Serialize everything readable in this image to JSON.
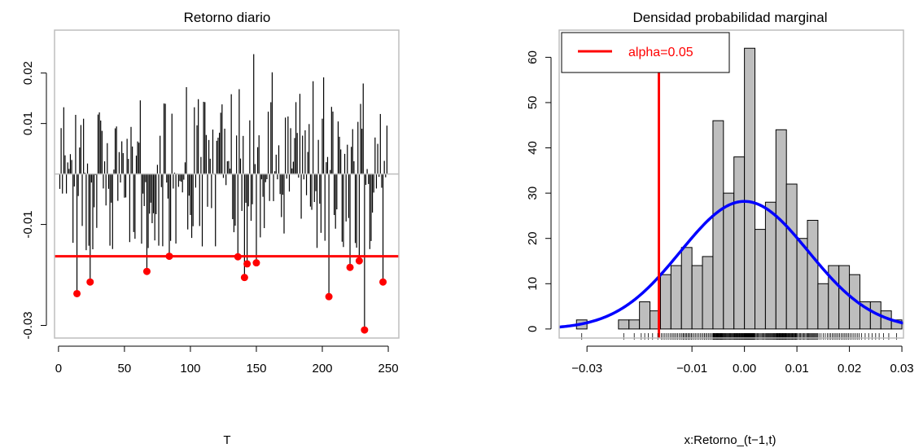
{
  "chart_data": [
    {
      "type": "bar",
      "title": "Retorno diario",
      "xlabel": "T",
      "ylabel": "",
      "xlim": [
        -3,
        258
      ],
      "ylim": [
        -0.0325,
        0.0285
      ],
      "x_ticks": [
        0,
        50,
        100,
        150,
        200,
        250
      ],
      "x_tick_labels": [
        "0",
        "50",
        "100",
        "150",
        "200",
        "250"
      ],
      "y_ticks": [
        -0.03,
        -0.01,
        0.01,
        0.02
      ],
      "y_tick_labels": [
        "-0.03",
        "-0.01",
        "0.01",
        "0.02"
      ],
      "zero_line": true,
      "threshold": -0.0163,
      "grid": false,
      "colors": {
        "bars": "#000000",
        "threshold": "#ff0000",
        "breach": "#ff0000",
        "zero_line": "#bebebe"
      },
      "breach_points": [
        {
          "x": 14,
          "y": -0.0237
        },
        {
          "x": 24,
          "y": -0.0214
        },
        {
          "x": 67,
          "y": -0.0193
        },
        {
          "x": 84,
          "y": -0.0163
        },
        {
          "x": 136,
          "y": -0.0164
        },
        {
          "x": 141,
          "y": -0.0205
        },
        {
          "x": 143,
          "y": -0.0178
        },
        {
          "x": 150,
          "y": -0.0176
        },
        {
          "x": 205,
          "y": -0.0243
        },
        {
          "x": 221,
          "y": -0.0185
        },
        {
          "x": 228,
          "y": -0.0172
        },
        {
          "x": 232,
          "y": -0.0309
        },
        {
          "x": 246,
          "y": -0.0214
        }
      ]
    },
    {
      "type": "bar",
      "title": "Densidad probabilidad marginal",
      "xlabel": "x:Retorno_(t−1,t)",
      "ylabel": "",
      "xlim": [
        -0.0353,
        0.0303
      ],
      "ylim": [
        -2,
        66
      ],
      "x_ticks": [
        -0.03,
        -0.01,
        0.0,
        0.01,
        0.02,
        0.03
      ],
      "x_tick_labels": [
        "−0.03",
        "−0.01",
        "0.00",
        "0.01",
        "0.02",
        "0.03"
      ],
      "y_ticks": [
        0,
        10,
        20,
        30,
        40,
        50,
        60
      ],
      "y_tick_labels": [
        "0",
        "10",
        "20",
        "30",
        "40",
        "50",
        "60"
      ],
      "bin_width": 0.002,
      "bins": [
        {
          "x0": -0.032,
          "x1": -0.03,
          "value": 2
        },
        {
          "x0": -0.03,
          "x1": -0.028,
          "value": 0
        },
        {
          "x0": -0.028,
          "x1": -0.026,
          "value": 0
        },
        {
          "x0": -0.026,
          "x1": -0.024,
          "value": 0
        },
        {
          "x0": -0.024,
          "x1": -0.022,
          "value": 2
        },
        {
          "x0": -0.022,
          "x1": -0.02,
          "value": 2
        },
        {
          "x0": -0.02,
          "x1": -0.018,
          "value": 6
        },
        {
          "x0": -0.018,
          "x1": -0.016,
          "value": 4
        },
        {
          "x0": -0.016,
          "x1": -0.014,
          "value": 12
        },
        {
          "x0": -0.014,
          "x1": -0.012,
          "value": 14
        },
        {
          "x0": -0.012,
          "x1": -0.01,
          "value": 18
        },
        {
          "x0": -0.01,
          "x1": -0.008,
          "value": 14
        },
        {
          "x0": -0.008,
          "x1": -0.006,
          "value": 16
        },
        {
          "x0": -0.006,
          "x1": -0.004,
          "value": 46
        },
        {
          "x0": -0.004,
          "x1": -0.002,
          "value": 30
        },
        {
          "x0": -0.002,
          "x1": 0.0,
          "value": 38
        },
        {
          "x0": 0.0,
          "x1": 0.002,
          "value": 62
        },
        {
          "x0": 0.002,
          "x1": 0.004,
          "value": 22
        },
        {
          "x0": 0.004,
          "x1": 0.006,
          "value": 28
        },
        {
          "x0": 0.006,
          "x1": 0.008,
          "value": 44
        },
        {
          "x0": 0.008,
          "x1": 0.01,
          "value": 32
        },
        {
          "x0": 0.01,
          "x1": 0.012,
          "value": 20
        },
        {
          "x0": 0.012,
          "x1": 0.014,
          "value": 24
        },
        {
          "x0": 0.014,
          "x1": 0.016,
          "value": 10
        },
        {
          "x0": 0.016,
          "x1": 0.018,
          "value": 14
        },
        {
          "x0": 0.018,
          "x1": 0.02,
          "value": 14
        },
        {
          "x0": 0.02,
          "x1": 0.022,
          "value": 12
        },
        {
          "x0": 0.022,
          "x1": 0.024,
          "value": 6
        },
        {
          "x0": 0.024,
          "x1": 0.026,
          "value": 6
        },
        {
          "x0": 0.026,
          "x1": 0.028,
          "value": 4
        },
        {
          "x0": 0.028,
          "x1": 0.03,
          "value": 2
        }
      ],
      "normal_curve": {
        "mean": 0.0,
        "sd": 0.0122,
        "scale": 0.862
      },
      "threshold": -0.0163,
      "legend": {
        "entries": [
          "alpha=0.05"
        ],
        "position": "top-left"
      },
      "rug": true,
      "grid": false,
      "colors": {
        "bars": "#bebebe",
        "bar_border": "#000000",
        "curve": "#0000ff",
        "threshold": "#ff0000",
        "legend_text": "#ff0000"
      }
    }
  ]
}
